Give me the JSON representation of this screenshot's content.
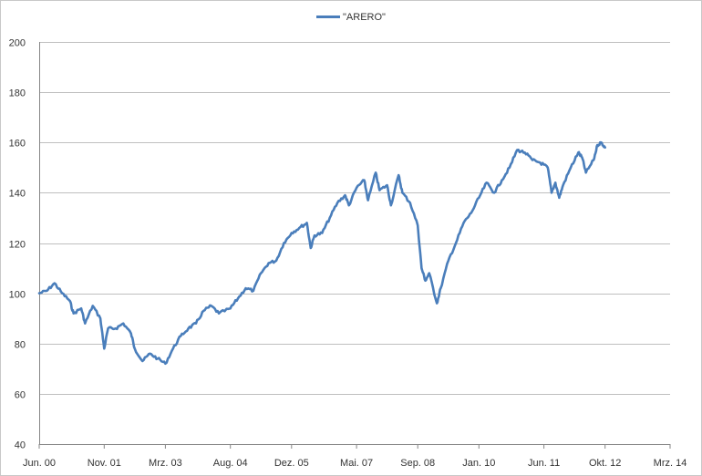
{
  "chart_data": {
    "type": "line",
    "title": "",
    "xlabel": "",
    "ylabel": "",
    "legend_position": "top-center",
    "grid": "horizontal",
    "ylim": [
      40,
      200
    ],
    "yticks": [
      40,
      60,
      80,
      100,
      120,
      140,
      160,
      180,
      200
    ],
    "xlim": [
      "2000-06",
      "2014-03"
    ],
    "xticks": [
      {
        "date": "2000-06",
        "label": "Jun. 00"
      },
      {
        "date": "2001-11",
        "label": "Nov. 01"
      },
      {
        "date": "2003-03",
        "label": "Mrz. 03"
      },
      {
        "date": "2004-08",
        "label": "Aug. 04"
      },
      {
        "date": "2005-12",
        "label": "Dez. 05"
      },
      {
        "date": "2007-05",
        "label": "Mai. 07"
      },
      {
        "date": "2008-09",
        "label": "Sep. 08"
      },
      {
        "date": "2010-01",
        "label": "Jan. 10"
      },
      {
        "date": "2011-06",
        "label": "Jun. 11"
      },
      {
        "date": "2012-10",
        "label": "Okt. 12"
      },
      {
        "date": "2014-03",
        "label": "Mrz. 14"
      }
    ],
    "colors": {
      "series": "#4a7ebb",
      "grid": "#bfbfbf",
      "axis": "#868686"
    },
    "series": [
      {
        "name": "\"ARERO\"",
        "points": [
          [
            "2000-06",
            100
          ],
          [
            "2000-08",
            101
          ],
          [
            "2000-10",
            104
          ],
          [
            "2000-12",
            100
          ],
          [
            "2001-02",
            97
          ],
          [
            "2001-03",
            92
          ],
          [
            "2001-05",
            94
          ],
          [
            "2001-06",
            88
          ],
          [
            "2001-08",
            95
          ],
          [
            "2001-10",
            90
          ],
          [
            "2001-11",
            78
          ],
          [
            "2001-12",
            86
          ],
          [
            "2002-02",
            86
          ],
          [
            "2002-04",
            88
          ],
          [
            "2002-06",
            84
          ],
          [
            "2002-07",
            78
          ],
          [
            "2002-09",
            73
          ],
          [
            "2002-11",
            76
          ],
          [
            "2003-01",
            74
          ],
          [
            "2003-03",
            72
          ],
          [
            "2003-05",
            78
          ],
          [
            "2003-07",
            83
          ],
          [
            "2003-09",
            86
          ],
          [
            "2003-11",
            88
          ],
          [
            "2004-01",
            93
          ],
          [
            "2004-03",
            95
          ],
          [
            "2004-05",
            92
          ],
          [
            "2004-08",
            94
          ],
          [
            "2004-10",
            98
          ],
          [
            "2004-12",
            102
          ],
          [
            "2005-02",
            101
          ],
          [
            "2005-04",
            108
          ],
          [
            "2005-06",
            112
          ],
          [
            "2005-08",
            113
          ],
          [
            "2005-10",
            120
          ],
          [
            "2005-12",
            124
          ],
          [
            "2006-02",
            126
          ],
          [
            "2006-04",
            128
          ],
          [
            "2006-05",
            118
          ],
          [
            "2006-06",
            123
          ],
          [
            "2006-08",
            124
          ],
          [
            "2006-10",
            130
          ],
          [
            "2006-12",
            136
          ],
          [
            "2007-02",
            139
          ],
          [
            "2007-03",
            135
          ],
          [
            "2007-05",
            142
          ],
          [
            "2007-07",
            145
          ],
          [
            "2007-08",
            137
          ],
          [
            "2007-10",
            148
          ],
          [
            "2007-11",
            141
          ],
          [
            "2008-01",
            143
          ],
          [
            "2008-02",
            135
          ],
          [
            "2008-04",
            147
          ],
          [
            "2008-05",
            140
          ],
          [
            "2008-07",
            136
          ],
          [
            "2008-09",
            127
          ],
          [
            "2008-10",
            110
          ],
          [
            "2008-11",
            105
          ],
          [
            "2008-12",
            108
          ],
          [
            "2009-02",
            96
          ],
          [
            "2009-03",
            102
          ],
          [
            "2009-05",
            113
          ],
          [
            "2009-07",
            120
          ],
          [
            "2009-09",
            128
          ],
          [
            "2009-11",
            132
          ],
          [
            "2010-01",
            138
          ],
          [
            "2010-03",
            144
          ],
          [
            "2010-05",
            140
          ],
          [
            "2010-07",
            145
          ],
          [
            "2010-09",
            150
          ],
          [
            "2010-11",
            157
          ],
          [
            "2011-01",
            156
          ],
          [
            "2011-03",
            153
          ],
          [
            "2011-05",
            152
          ],
          [
            "2011-07",
            150
          ],
          [
            "2011-08",
            140
          ],
          [
            "2011-09",
            144
          ],
          [
            "2011-10",
            138
          ],
          [
            "2011-11",
            143
          ],
          [
            "2012-01",
            150
          ],
          [
            "2012-03",
            156
          ],
          [
            "2012-04",
            154
          ],
          [
            "2012-05",
            148
          ],
          [
            "2012-07",
            153
          ],
          [
            "2012-08",
            159
          ],
          [
            "2012-09",
            160
          ],
          [
            "2012-10",
            158
          ]
        ]
      }
    ]
  }
}
